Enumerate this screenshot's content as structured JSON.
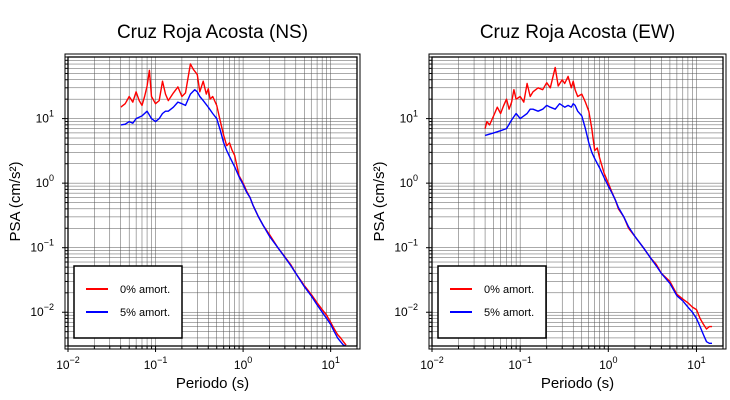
{
  "chart_data": [
    {
      "type": "line",
      "title": "Cruz Roja Acosta (NS)",
      "xlabel": "Periodo (s)",
      "ylabel": "PSA (cm/s²)",
      "xscale": "log",
      "yscale": "log",
      "xlim": [
        0.01,
        20
      ],
      "ylim": [
        0.003,
        90
      ],
      "grid": true,
      "legend_position": "bottom-left",
      "x_ticks": [
        {
          "value": 0.01,
          "base": "10",
          "exp": "−2"
        },
        {
          "value": 0.1,
          "base": "10",
          "exp": "−1"
        },
        {
          "value": 1,
          "base": "10",
          "exp": "0"
        },
        {
          "value": 10,
          "base": "10",
          "exp": "1"
        }
      ],
      "y_ticks": [
        {
          "value": 0.01,
          "base": "10",
          "exp": "−2"
        },
        {
          "value": 0.1,
          "base": "10",
          "exp": "−1"
        },
        {
          "value": 1,
          "base": "10",
          "exp": "0"
        },
        {
          "value": 10,
          "base": "10",
          "exp": "1"
        }
      ],
      "series": [
        {
          "name": "0% amort.",
          "color": "#ff0000",
          "points": [
            [
              0.04,
              15
            ],
            [
              0.045,
              17
            ],
            [
              0.05,
              22
            ],
            [
              0.055,
              18
            ],
            [
              0.06,
              26
            ],
            [
              0.065,
              19
            ],
            [
              0.07,
              16
            ],
            [
              0.075,
              22
            ],
            [
              0.08,
              32
            ],
            [
              0.085,
              56
            ],
            [
              0.09,
              22
            ],
            [
              0.1,
              17
            ],
            [
              0.11,
              19
            ],
            [
              0.12,
              38
            ],
            [
              0.13,
              24
            ],
            [
              0.14,
              19
            ],
            [
              0.16,
              25
            ],
            [
              0.18,
              31
            ],
            [
              0.2,
              22
            ],
            [
              0.22,
              25
            ],
            [
              0.25,
              70
            ],
            [
              0.27,
              58
            ],
            [
              0.3,
              48
            ],
            [
              0.32,
              26
            ],
            [
              0.35,
              38
            ],
            [
              0.38,
              24
            ],
            [
              0.4,
              29
            ],
            [
              0.42,
              20
            ],
            [
              0.45,
              22
            ],
            [
              0.5,
              16
            ],
            [
              0.55,
              9
            ],
            [
              0.6,
              5.5
            ],
            [
              0.65,
              3.8
            ],
            [
              0.7,
              4.2
            ],
            [
              0.75,
              3.2
            ],
            [
              0.8,
              2.7
            ],
            [
              0.9,
              1.3
            ],
            [
              1,
              1.0
            ],
            [
              1.1,
              0.75
            ],
            [
              1.2,
              0.6
            ],
            [
              1.3,
              0.45
            ],
            [
              1.5,
              0.3
            ],
            [
              1.7,
              0.22
            ],
            [
              2,
              0.16
            ],
            [
              2.5,
              0.1
            ],
            [
              3,
              0.072
            ],
            [
              3.5,
              0.055
            ],
            [
              4,
              0.04
            ],
            [
              5,
              0.026
            ],
            [
              6,
              0.019
            ],
            [
              7,
              0.014
            ],
            [
              8,
              0.011
            ],
            [
              9,
              0.009
            ],
            [
              10,
              0.007
            ],
            [
              11,
              0.0055
            ],
            [
              12,
              0.0045
            ],
            [
              13,
              0.004
            ],
            [
              14,
              0.0035
            ],
            [
              15,
              0.0031
            ]
          ]
        },
        {
          "name": "5% amort.",
          "color": "#0000ff",
          "points": [
            [
              0.04,
              8
            ],
            [
              0.045,
              8.2
            ],
            [
              0.05,
              9
            ],
            [
              0.055,
              8.5
            ],
            [
              0.06,
              10
            ],
            [
              0.07,
              11
            ],
            [
              0.08,
              13
            ],
            [
              0.09,
              10
            ],
            [
              0.1,
              9
            ],
            [
              0.11,
              10
            ],
            [
              0.12,
              12
            ],
            [
              0.13,
              13
            ],
            [
              0.14,
              13
            ],
            [
              0.16,
              15
            ],
            [
              0.18,
              18
            ],
            [
              0.2,
              17
            ],
            [
              0.22,
              16
            ],
            [
              0.25,
              24
            ],
            [
              0.28,
              28
            ],
            [
              0.3,
              26
            ],
            [
              0.32,
              22
            ],
            [
              0.35,
              19
            ],
            [
              0.4,
              15
            ],
            [
              0.45,
              12
            ],
            [
              0.5,
              10
            ],
            [
              0.55,
              6.5
            ],
            [
              0.6,
              4.2
            ],
            [
              0.65,
              3.2
            ],
            [
              0.7,
              2.6
            ],
            [
              0.8,
              1.8
            ],
            [
              0.9,
              1.25
            ],
            [
              1,
              0.95
            ],
            [
              1.1,
              0.72
            ],
            [
              1.2,
              0.6
            ],
            [
              1.3,
              0.45
            ],
            [
              1.5,
              0.3
            ],
            [
              1.7,
              0.22
            ],
            [
              2,
              0.15
            ],
            [
              2.5,
              0.1
            ],
            [
              3,
              0.071
            ],
            [
              3.5,
              0.053
            ],
            [
              4,
              0.04
            ],
            [
              5,
              0.025
            ],
            [
              6,
              0.018
            ],
            [
              7,
              0.013
            ],
            [
              8,
              0.01
            ],
            [
              9,
              0.008
            ],
            [
              10,
              0.0065
            ],
            [
              11,
              0.005
            ],
            [
              12,
              0.004
            ],
            [
              13,
              0.0035
            ],
            [
              14,
              0.0031
            ],
            [
              15,
              0.003
            ]
          ]
        }
      ]
    },
    {
      "type": "line",
      "title": "Cruz Roja Acosta (EW)",
      "xlabel": "Periodo (s)",
      "ylabel": "PSA (cm/s²)",
      "xscale": "log",
      "yscale": "log",
      "xlim": [
        0.01,
        20
      ],
      "ylim": [
        0.003,
        90
      ],
      "grid": true,
      "legend_position": "bottom-left",
      "x_ticks": [
        {
          "value": 0.01,
          "base": "10",
          "exp": "−2"
        },
        {
          "value": 0.1,
          "base": "10",
          "exp": "−1"
        },
        {
          "value": 1,
          "base": "10",
          "exp": "0"
        },
        {
          "value": 10,
          "base": "10",
          "exp": "1"
        }
      ],
      "y_ticks": [
        {
          "value": 0.01,
          "base": "10",
          "exp": "−2"
        },
        {
          "value": 0.1,
          "base": "10",
          "exp": "−1"
        },
        {
          "value": 1,
          "base": "10",
          "exp": "0"
        },
        {
          "value": 10,
          "base": "10",
          "exp": "1"
        }
      ],
      "series": [
        {
          "name": "0% amort.",
          "color": "#ff0000",
          "points": [
            [
              0.04,
              7
            ],
            [
              0.042,
              9
            ],
            [
              0.045,
              8
            ],
            [
              0.05,
              11
            ],
            [
              0.055,
              15
            ],
            [
              0.06,
              12
            ],
            [
              0.065,
              16
            ],
            [
              0.07,
              20
            ],
            [
              0.075,
              14
            ],
            [
              0.08,
              18
            ],
            [
              0.085,
              28
            ],
            [
              0.09,
              20
            ],
            [
              0.1,
              22
            ],
            [
              0.11,
              18
            ],
            [
              0.12,
              35
            ],
            [
              0.13,
              22
            ],
            [
              0.14,
              26
            ],
            [
              0.16,
              30
            ],
            [
              0.18,
              28
            ],
            [
              0.2,
              36
            ],
            [
              0.22,
              30
            ],
            [
              0.25,
              62
            ],
            [
              0.27,
              32
            ],
            [
              0.3,
              40
            ],
            [
              0.32,
              35
            ],
            [
              0.35,
              45
            ],
            [
              0.38,
              30
            ],
            [
              0.4,
              38
            ],
            [
              0.42,
              28
            ],
            [
              0.45,
              22
            ],
            [
              0.5,
              24
            ],
            [
              0.55,
              18
            ],
            [
              0.6,
              13
            ],
            [
              0.65,
              7
            ],
            [
              0.7,
              3.2
            ],
            [
              0.75,
              3.5
            ],
            [
              0.8,
              2.4
            ],
            [
              0.9,
              1.4
            ],
            [
              1,
              1.0
            ],
            [
              1.1,
              0.72
            ],
            [
              1.2,
              0.55
            ],
            [
              1.3,
              0.4
            ],
            [
              1.5,
              0.3
            ],
            [
              1.7,
              0.2
            ],
            [
              2,
              0.15
            ],
            [
              2.5,
              0.1
            ],
            [
              3,
              0.07
            ],
            [
              3.5,
              0.055
            ],
            [
              4,
              0.04
            ],
            [
              5,
              0.03
            ],
            [
              6,
              0.019
            ],
            [
              7,
              0.016
            ],
            [
              8,
              0.014
            ],
            [
              9,
              0.012
            ],
            [
              10,
              0.011
            ],
            [
              11,
              0.008
            ],
            [
              12,
              0.0065
            ],
            [
              13,
              0.0055
            ],
            [
              14,
              0.006
            ],
            [
              15,
              0.006
            ]
          ]
        },
        {
          "name": "5% amort.",
          "color": "#0000ff",
          "points": [
            [
              0.04,
              5.5
            ],
            [
              0.05,
              6
            ],
            [
              0.06,
              6.5
            ],
            [
              0.07,
              7
            ],
            [
              0.08,
              9.5
            ],
            [
              0.09,
              12
            ],
            [
              0.1,
              10
            ],
            [
              0.11,
              11
            ],
            [
              0.12,
              12
            ],
            [
              0.13,
              14
            ],
            [
              0.14,
              14
            ],
            [
              0.16,
              13
            ],
            [
              0.18,
              14
            ],
            [
              0.2,
              16
            ],
            [
              0.22,
              15
            ],
            [
              0.25,
              14
            ],
            [
              0.28,
              17
            ],
            [
              0.3,
              16
            ],
            [
              0.32,
              15
            ],
            [
              0.35,
              16
            ],
            [
              0.38,
              15
            ],
            [
              0.4,
              17
            ],
            [
              0.42,
              16
            ],
            [
              0.45,
              13
            ],
            [
              0.5,
              11
            ],
            [
              0.55,
              7
            ],
            [
              0.6,
              4.2
            ],
            [
              0.65,
              3.0
            ],
            [
              0.7,
              2.4
            ],
            [
              0.8,
              1.7
            ],
            [
              0.9,
              1.2
            ],
            [
              1,
              0.9
            ],
            [
              1.1,
              0.7
            ],
            [
              1.2,
              0.55
            ],
            [
              1.3,
              0.42
            ],
            [
              1.5,
              0.3
            ],
            [
              1.7,
              0.21
            ],
            [
              2,
              0.15
            ],
            [
              2.5,
              0.1
            ],
            [
              3,
              0.07
            ],
            [
              3.5,
              0.052
            ],
            [
              4,
              0.04
            ],
            [
              5,
              0.028
            ],
            [
              6,
              0.018
            ],
            [
              7,
              0.015
            ],
            [
              8,
              0.012
            ],
            [
              9,
              0.01
            ],
            [
              10,
              0.008
            ],
            [
              11,
              0.006
            ],
            [
              12,
              0.0045
            ],
            [
              13,
              0.0035
            ],
            [
              14,
              0.0033
            ],
            [
              15,
              0.0033
            ]
          ]
        }
      ]
    }
  ]
}
